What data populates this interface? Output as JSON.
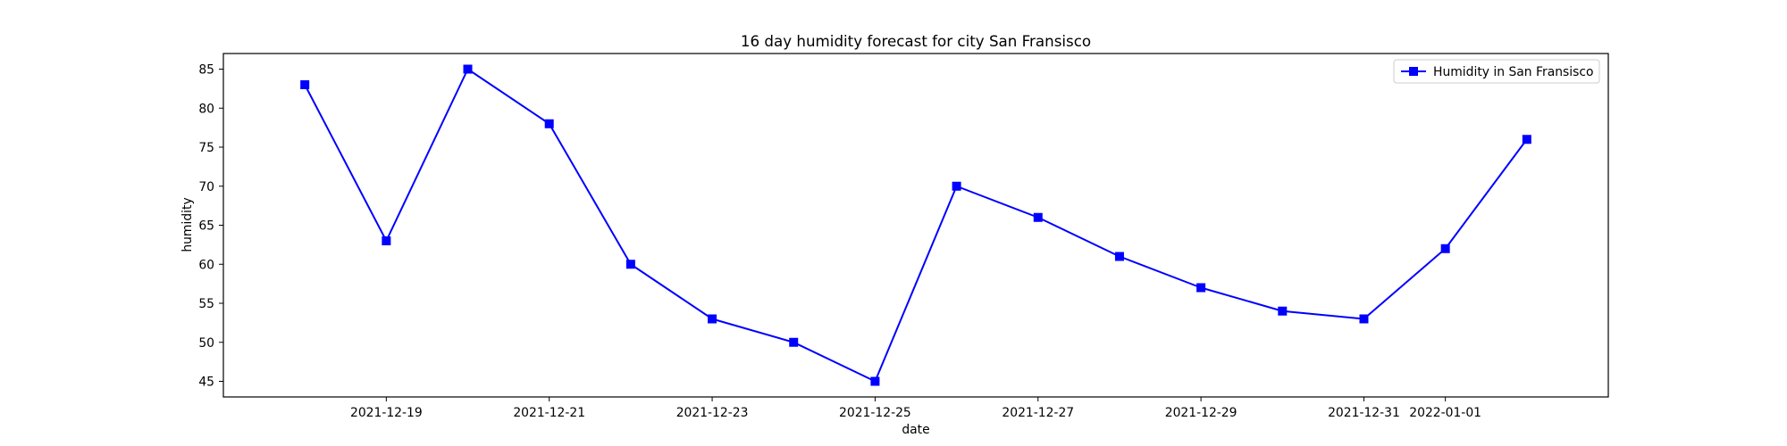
{
  "chart_data": {
    "type": "line",
    "title": "16 day humidity forecast for city San Fransisco",
    "xlabel": "date",
    "ylabel": "humidity",
    "x": [
      "2021-12-18",
      "2021-12-19",
      "2021-12-20",
      "2021-12-21",
      "2021-12-22",
      "2021-12-23",
      "2021-12-24",
      "2021-12-25",
      "2021-12-26",
      "2021-12-27",
      "2021-12-28",
      "2021-12-29",
      "2021-12-30",
      "2021-12-31",
      "2022-01-01",
      "2022-01-02"
    ],
    "series": [
      {
        "name": "Humidity in San Fransisco",
        "values": [
          83,
          63,
          85,
          78,
          60,
          53,
          50,
          45,
          70,
          66,
          61,
          57,
          54,
          53,
          62,
          76
        ],
        "color": "#0000ff",
        "marker": "square"
      }
    ],
    "x_ticks": [
      "2021-12-19",
      "2021-12-21",
      "2021-12-23",
      "2021-12-25",
      "2021-12-27",
      "2021-12-29",
      "2021-12-31",
      "2022-01-01"
    ],
    "y_ticks": [
      45,
      50,
      55,
      60,
      65,
      70,
      75,
      80,
      85
    ],
    "xlim": [
      "2021-12-17",
      "2022-01-03"
    ],
    "ylim": [
      43,
      87
    ],
    "grid": false,
    "legend_position": "upper right"
  }
}
